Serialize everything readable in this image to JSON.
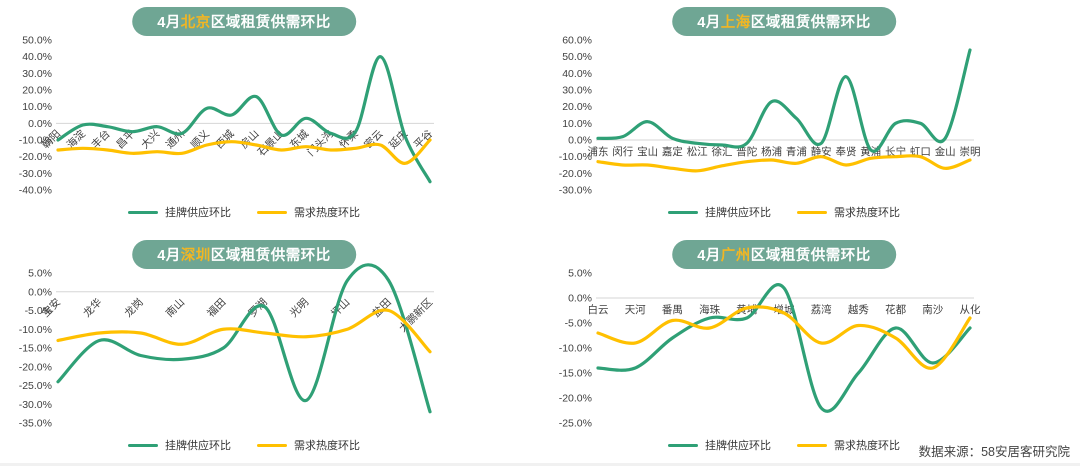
{
  "page": {
    "background": "#ffffff"
  },
  "colors": {
    "supply_green": "#2fa076",
    "demand_yellow": "#ffc000",
    "badge_green": "#6fa694",
    "badge_city_yellow": "#f2b623",
    "axis_text": "#3f3f3f",
    "zero_line": "#d6d6d6"
  },
  "legend": {
    "supply_label": "挂牌供应环比",
    "demand_label": "需求热度环比"
  },
  "footer": {
    "source_text": "数据来源：58安居客研究院"
  },
  "chart_data": [
    {
      "id": "beijing",
      "type": "line",
      "title": "4月北京区域租赁供需环比",
      "title_prefix": "4月",
      "title_city": "北京",
      "title_suffix": "区域租赁供需环比",
      "categories": [
        "朝阳",
        "海淀",
        "丰台",
        "昌平",
        "大兴",
        "通州",
        "顺义",
        "西城",
        "房山",
        "石景山",
        "东城",
        "门头沟",
        "怀柔",
        "密云",
        "延庆",
        "平谷"
      ],
      "series": [
        {
          "name": "挂牌供应环比",
          "color_key": "supply_green",
          "values": [
            -10,
            -1,
            -2,
            -5,
            -2,
            -6,
            9,
            5,
            16,
            -7,
            3,
            -6,
            -5,
            40,
            -8,
            -35
          ]
        },
        {
          "name": "需求热度环比",
          "color_key": "demand_yellow",
          "values": [
            -16,
            -15,
            -16,
            -18,
            -17,
            -18,
            -13,
            -11,
            -13,
            -16,
            -14,
            -16,
            -15,
            -13,
            -24,
            -10
          ]
        }
      ],
      "ylim": [
        -40,
        50
      ],
      "ytick_step": 10,
      "ytick_format": "percent1",
      "x_label_rotation": 45,
      "grid": "zero-line-only",
      "legend_position": "bottom"
    },
    {
      "id": "shanghai",
      "type": "line",
      "title": "4月上海区域租赁供需环比",
      "title_prefix": "4月",
      "title_city": "上海",
      "title_suffix": "区域租赁供需环比",
      "categories": [
        "浦东",
        "闵行",
        "宝山",
        "嘉定",
        "松江",
        "徐汇",
        "普陀",
        "杨浦",
        "青浦",
        "静安",
        "奉贤",
        "黄浦",
        "长宁",
        "虹口",
        "金山",
        "崇明"
      ],
      "series": [
        {
          "name": "挂牌供应环比",
          "color_key": "supply_green",
          "values": [
            1,
            2,
            11,
            1,
            -2,
            -3,
            -2,
            23,
            13,
            -2,
            38,
            -6,
            10,
            10,
            1,
            54
          ]
        },
        {
          "name": "需求热度环比",
          "color_key": "demand_yellow",
          "values": [
            -13,
            -15,
            -15,
            -17,
            -18.5,
            -15.5,
            -13,
            -12,
            -14,
            -10,
            -15,
            -11,
            -10,
            -10,
            -17,
            -12
          ]
        }
      ],
      "ylim": [
        -30,
        60
      ],
      "ytick_step": 10,
      "ytick_format": "percent1",
      "x_label_rotation": 0,
      "grid": "zero-line-only",
      "legend_position": "bottom"
    },
    {
      "id": "shenzhen",
      "type": "line",
      "title": "4月深圳区域租赁供需环比",
      "title_prefix": "4月",
      "title_city": "深圳",
      "title_suffix": "区域租赁供需环比",
      "categories": [
        "宝安",
        "龙华",
        "龙岗",
        "南山",
        "福田",
        "罗湖",
        "光明",
        "坪山",
        "盐田",
        "大鹏新区"
      ],
      "series": [
        {
          "name": "挂牌供应环比",
          "color_key": "supply_green",
          "values": [
            -24,
            -13,
            -17,
            -18,
            -15,
            -4,
            -29,
            3,
            3,
            -32
          ]
        },
        {
          "name": "需求热度环比",
          "color_key": "demand_yellow",
          "values": [
            -13,
            -11,
            -11,
            -14,
            -10,
            -11,
            -12,
            -10,
            -5,
            -16
          ]
        }
      ],
      "ylim": [
        -35,
        5
      ],
      "ytick_step": 5,
      "ytick_format": "percent1",
      "x_label_rotation": 45,
      "grid": "zero-line-only",
      "legend_position": "bottom"
    },
    {
      "id": "guangzhou",
      "type": "line",
      "title": "4月广州区域租赁供需环比",
      "title_prefix": "4月",
      "title_city": "广州",
      "title_suffix": "区域租赁供需环比",
      "categories": [
        "白云",
        "天河",
        "番禺",
        "海珠",
        "黄埔",
        "增城",
        "荔湾",
        "越秀",
        "花都",
        "南沙",
        "从化"
      ],
      "series": [
        {
          "name": "挂牌供应环比",
          "color_key": "supply_green",
          "values": [
            -14,
            -14,
            -8,
            -4,
            -4,
            2,
            -22,
            -15,
            -6,
            -13,
            -6
          ]
        },
        {
          "name": "需求热度环比",
          "color_key": "demand_yellow",
          "values": [
            -7,
            -9,
            -4.5,
            -6,
            -2,
            -3,
            -9,
            -5.5,
            -8,
            -14,
            -4
          ]
        }
      ],
      "ylim": [
        -25,
        5
      ],
      "ytick_step": 5,
      "ytick_format": "percent1",
      "x_label_rotation": 0,
      "grid": "zero-line-only",
      "legend_position": "bottom"
    }
  ]
}
